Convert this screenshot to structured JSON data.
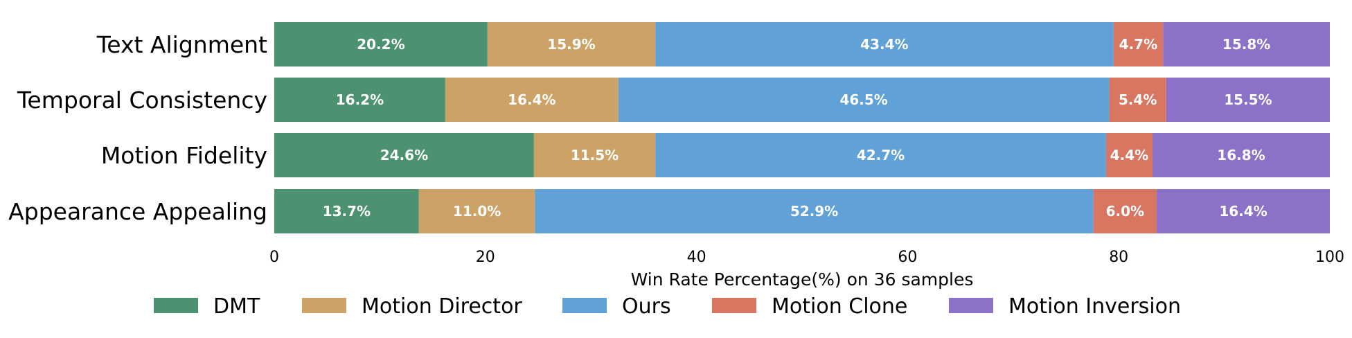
{
  "chart_data": {
    "type": "bar",
    "orientation": "horizontal",
    "stacked": true,
    "categories": [
      "Text Alignment",
      "Temporal Consistency",
      "Motion Fidelity",
      "Appearance Appealing"
    ],
    "series": [
      {
        "name": "DMT",
        "color": "#4c9270",
        "values": [
          20.2,
          16.2,
          24.6,
          13.7
        ],
        "labels": [
          "20.2%",
          "16.2%",
          "24.6%",
          "13.7%"
        ]
      },
      {
        "name": "Motion Director",
        "color": "#cca266",
        "values": [
          15.9,
          16.4,
          11.5,
          11.0
        ],
        "labels": [
          "15.9%",
          "16.4%",
          "11.5%",
          "11.0%"
        ]
      },
      {
        "name": "Ours",
        "color": "#60a1d7",
        "values": [
          43.4,
          46.5,
          42.7,
          52.9
        ],
        "labels": [
          "43.4%",
          "46.5%",
          "42.7%",
          "52.9%"
        ]
      },
      {
        "name": "Motion Clone",
        "color": "#d97662",
        "values": [
          4.7,
          5.4,
          4.4,
          6.0
        ],
        "labels": [
          "4.7%",
          "5.4%",
          "4.4%",
          "6.0%"
        ]
      },
      {
        "name": "Motion Inversion",
        "color": "#8b72c8",
        "values": [
          15.8,
          15.5,
          16.8,
          16.4
        ],
        "labels": [
          "15.8%",
          "15.5%",
          "16.8%",
          "16.4%"
        ]
      }
    ],
    "xlabel": "Win Rate Percentage(%) on 36 samples",
    "xlim": [
      0,
      100
    ],
    "xticks": [
      "0",
      "20",
      "40",
      "60",
      "80",
      "100"
    ],
    "grid": false,
    "legend_position": "bottom"
  }
}
